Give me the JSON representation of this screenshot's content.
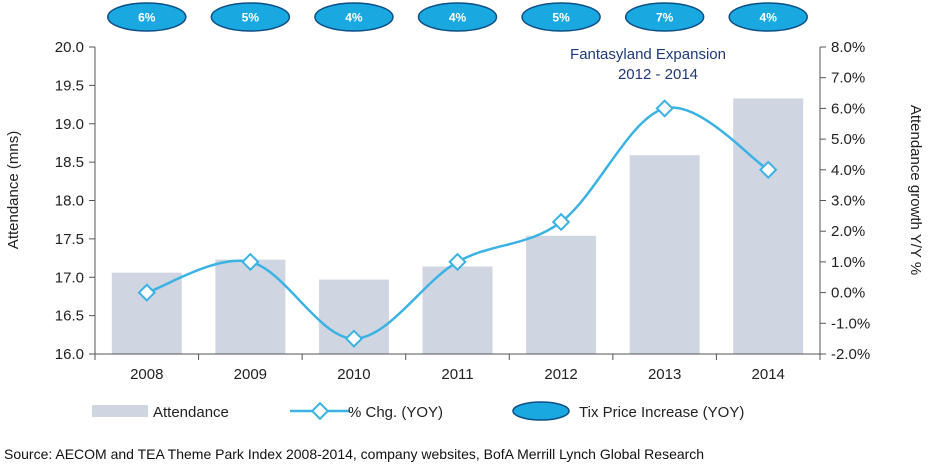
{
  "chart_data": {
    "type": "bar+line",
    "categories": [
      "2008",
      "2009",
      "2010",
      "2011",
      "2012",
      "2013",
      "2014"
    ],
    "series": [
      {
        "name": "Attendance",
        "type": "bar",
        "axis": "left",
        "values": [
          17.06,
          17.23,
          16.97,
          17.14,
          17.54,
          18.59,
          19.33
        ]
      },
      {
        "name": "% Chg. (YOY)",
        "type": "line",
        "axis": "right",
        "values": [
          0.0,
          1.0,
          -1.5,
          1.0,
          2.3,
          6.0,
          4.0
        ]
      }
    ],
    "tix_price_increase": {
      "name": "Tix Price Increase (YOY)",
      "labels": [
        "6%",
        "5%",
        "4%",
        "4%",
        "5%",
        "7%",
        "4%"
      ]
    },
    "y_left": {
      "label": "Attendance (mns)",
      "ylim": [
        16.0,
        20.0
      ],
      "ticks": [
        "16.0",
        "16.5",
        "17.0",
        "17.5",
        "18.0",
        "18.5",
        "19.0",
        "19.5",
        "20.0"
      ]
    },
    "y_right": {
      "label": "Attendance growth Y/Y %",
      "ylim": [
        -2.0,
        8.0
      ],
      "ticks": [
        "-2.0%",
        "-1.0%",
        "0.0%",
        "1.0%",
        "2.0%",
        "3.0%",
        "4.0%",
        "5.0%",
        "6.0%",
        "7.0%",
        "8.0%"
      ]
    },
    "annotation": {
      "line1": "Fantasyland Expansion",
      "line2": "2012 - 2014"
    },
    "legend_position": "bottom",
    "colors": {
      "bar": "#cfd5e1",
      "line": "#3ab2e4",
      "bubble": "#1aa8e0",
      "bubble_stroke": "#0d4f86",
      "axis": "#555555"
    }
  },
  "source": "Source: AECOM and TEA Theme Park Index 2008-2014, company websites, BofA Merrill Lynch Global Research"
}
